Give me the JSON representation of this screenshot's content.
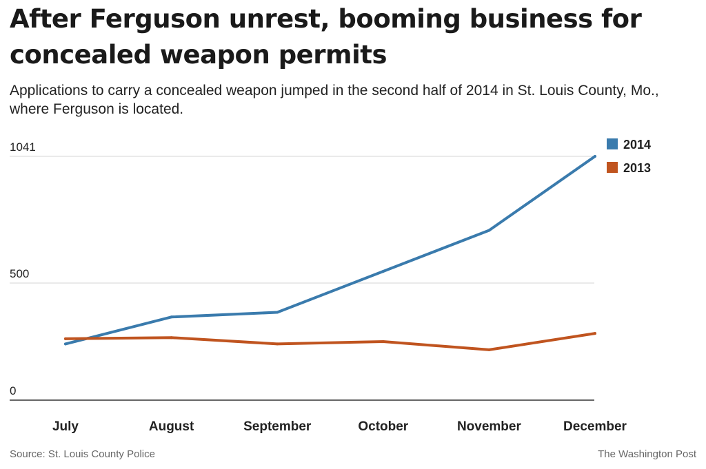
{
  "title": "After Ferguson unrest, booming business for concealed weapon permits",
  "subtitle": "Applications to carry a concealed weapon jumped in the second half of 2014 in St. Louis County, Mo., where Ferguson is located.",
  "source": "Source: St. Louis County Police",
  "credit": "The Washington Post",
  "chart_data": {
    "type": "line",
    "title": "After Ferguson unrest, booming business for concealed weapon permits",
    "subtitle": "Applications to carry a concealed weapon jumped in the second half of 2014 in St. Louis County, Mo., where Ferguson is located.",
    "categories": [
      "July",
      "August",
      "September",
      "October",
      "November",
      "December"
    ],
    "series": [
      {
        "name": "2014",
        "color": "#3a7bad",
        "values": [
          240,
          355,
          375,
          550,
          725,
          1041
        ]
      },
      {
        "name": "2013",
        "color": "#c0541f",
        "values": [
          262,
          267,
          240,
          250,
          215,
          285
        ]
      }
    ],
    "yticks": [
      0,
      500,
      1041
    ],
    "ylim": [
      0,
      1041
    ],
    "grid": true,
    "legend": "top-right",
    "xlabel": "",
    "ylabel": ""
  }
}
